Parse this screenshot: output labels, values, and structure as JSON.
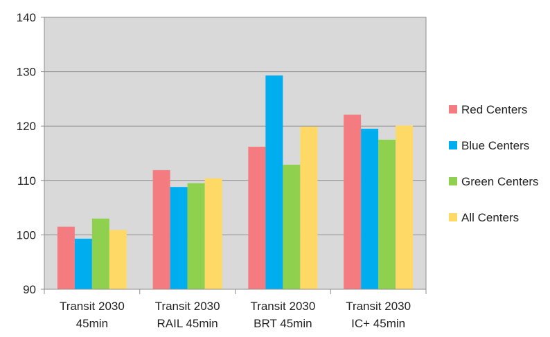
{
  "chart_data": {
    "type": "bar",
    "categories": [
      [
        "Transit 2030",
        "45min"
      ],
      [
        "Transit 2030",
        "RAIL 45min"
      ],
      [
        "Transit 2030",
        "BRT 45min"
      ],
      [
        "Transit 2030",
        "IC+ 45min"
      ]
    ],
    "series": [
      {
        "name": "Red Centers",
        "color": "#f47c80",
        "values": [
          101.5,
          111.9,
          116.2,
          122.1
        ]
      },
      {
        "name": "Blue Centers",
        "color": "#00adef",
        "values": [
          99.3,
          108.8,
          129.3,
          119.5
        ]
      },
      {
        "name": "Green Centers",
        "color": "#8fd14f",
        "values": [
          103.0,
          109.5,
          112.9,
          117.5
        ]
      },
      {
        "name": "All Centers",
        "color": "#ffd966",
        "values": [
          100.9,
          110.4,
          119.9,
          120.1
        ]
      }
    ],
    "ylim": [
      90,
      140
    ],
    "yticks": [
      90,
      100,
      110,
      120,
      130,
      140
    ],
    "grid": true,
    "plot_background": "#d9d9d9",
    "legend_position": "right"
  }
}
